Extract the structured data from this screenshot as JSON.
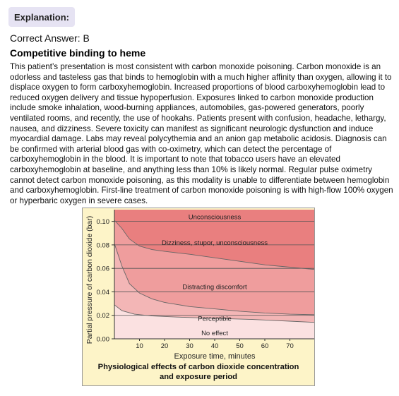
{
  "header": {
    "badge": "Explanation:"
  },
  "answer_line": "Correct Answer: B",
  "heading": "Competitive binding to heme",
  "paragraph": "This patient’s presentation is most consistent with carbon monoxide poisoning. Carbon monoxide is an odorless and tasteless gas that binds to hemoglobin with a much higher affinity than oxygen, allowing it to displace oxygen to form carboxyhemoglobin. Increased proportions of blood carboxyhemoglobin lead to reduced oxygen delivery and tissue hypoperfusion. Exposures linked to carbon monoxide production include smoke inhalation, wood-burning appliances, automobiles, gas-powered generators, poorly ventilated rooms, and recently, the use of hookahs. Patients present with confusion, headache, lethargy, nausea, and dizziness. Severe toxicity can manifest as significant neurologic dysfunction and induce myocardial damage. Labs may reveal polycythemia and an anion gap metabolic acidosis. Diagnosis can be confirmed with arterial blood gas with co-oximetry, which can detect the percentage of carboxyhemoglobin in the blood. It is important to note that tobacco users have an elevated carboxyhemoglobin at baseline, and anything less than 10% is likely normal. Regular pulse oximetry cannot detect carbon monoxide poisoning, as this modality is unable to differentiate between hemoglobin and carboxyhemoglobin. First-line treatment of carbon monoxide poisoning is with high-flow 100% oxygen or hyperbaric oxygen in severe cases.",
  "chart_data": {
    "type": "area",
    "caption_line1": "Physiological effects of carbon dioxide concentration",
    "caption_line2": "and exposure period",
    "xlabel": "Exposure time,  minutes",
    "ylabel": "Partial pressure of carbon dioxide (bar)",
    "xlim": [
      0,
      80
    ],
    "ylim": [
      0,
      0.11
    ],
    "x_ticks": [
      10,
      20,
      30,
      40,
      50,
      60,
      70
    ],
    "y_ticks": [
      {
        "v": 0.0,
        "label": "0.00"
      },
      {
        "v": 0.02,
        "label": "0.02"
      },
      {
        "v": 0.04,
        "label": "0.04"
      },
      {
        "v": 0.06,
        "label": "0.06"
      },
      {
        "v": 0.08,
        "label": "0.08"
      },
      {
        "v": 0.1,
        "label": "0.10"
      }
    ],
    "zones": [
      {
        "label": "No effect",
        "color": "#fbe1e1",
        "label_at": [
          0.0107
        ]
      },
      {
        "label": "Perceptible",
        "color": "#f7cccc",
        "label_at": [
          0.0232
        ]
      },
      {
        "label": "Distracting discomfort",
        "color": "#f3b6b6",
        "label_at": [
          0.0501
        ]
      },
      {
        "label": "Dizziness, stupor, unconsciousness",
        "color": "#ef9d9d",
        "label_at": [
          0.0877
        ]
      },
      {
        "label": "Unconsciousness",
        "color": "#e97f7f",
        "label_at": [
          0.1098
        ]
      }
    ],
    "boundaries": [
      {
        "name": "no-effect-perceptible",
        "x": [
          0,
          3,
          8,
          15,
          25,
          40,
          55,
          70,
          80
        ],
        "y": [
          0.029,
          0.024,
          0.021,
          0.0195,
          0.0185,
          0.0175,
          0.0165,
          0.015,
          0.014
        ]
      },
      {
        "name": "perceptible-distracting",
        "x": [
          0,
          3,
          6,
          10,
          15,
          20,
          30,
          40,
          50,
          60,
          70,
          80
        ],
        "y": [
          0.081,
          0.062,
          0.047,
          0.039,
          0.034,
          0.031,
          0.0275,
          0.0255,
          0.0235,
          0.022,
          0.021,
          0.0205
        ]
      },
      {
        "name": "distracting-dizziness",
        "x": [
          0,
          3,
          6,
          10,
          15,
          20,
          30,
          40,
          50,
          60,
          70,
          80
        ],
        "y": [
          0.101,
          0.094,
          0.085,
          0.079,
          0.076,
          0.0745,
          0.072,
          0.069,
          0.066,
          0.063,
          0.061,
          0.059
        ]
      }
    ],
    "gridlines_y": [
      0.1,
      0.08,
      0.06,
      0.04,
      0.02
    ],
    "grid": true,
    "legend": "none"
  }
}
